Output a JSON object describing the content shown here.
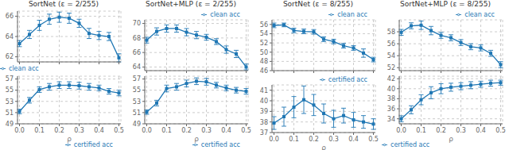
{
  "chart_data": [
    {
      "type": "line",
      "title": "SortNet (ε = 2/255)",
      "x": [
        0.0,
        0.05,
        0.1,
        0.15,
        0.2,
        0.25,
        0.3,
        0.35,
        0.4,
        0.45,
        0.5
      ],
      "xlim": [
        -0.01,
        0.51
      ],
      "xticks": [
        0,
        0.1,
        0.2,
        0.3,
        0.4,
        0.5
      ],
      "ylim": [
        61.5,
        66.5
      ],
      "yticks": [
        62,
        64,
        66
      ],
      "grid": true,
      "legend": "lower left",
      "tick_labels": "y",
      "series": [
        {
          "name": "clean acc",
          "color": "#1f77b4",
          "marker": "square",
          "values": [
            63.3,
            64.2,
            65.1,
            65.7,
            65.9,
            65.8,
            65.3,
            64.3,
            64.1,
            64.0,
            61.9
          ],
          "error": [
            0.3,
            0.4,
            0.5,
            0.5,
            0.5,
            0.5,
            0.4,
            0.5,
            0.4,
            0.4,
            0.4
          ]
        }
      ]
    },
    {
      "type": "line",
      "title": "SortNet+MLP (ε = 2/255)",
      "x": [
        0.0,
        0.05,
        0.1,
        0.15,
        0.2,
        0.25,
        0.3,
        0.35,
        0.4,
        0.45,
        0.5
      ],
      "xlim": [
        -0.01,
        0.51
      ],
      "xticks": [
        0,
        0.1,
        0.2,
        0.3,
        0.4,
        0.5
      ],
      "ylim": [
        63.5,
        70.5
      ],
      "yticks": [
        64,
        66,
        68,
        70
      ],
      "grid": true,
      "legend": "upper right",
      "tick_labels": "y",
      "series": [
        {
          "name": "clean acc",
          "color": "#1f77b4",
          "marker": "square",
          "values": [
            67.7,
            68.9,
            69.3,
            69.3,
            68.8,
            68.4,
            68.1,
            67.5,
            66.4,
            65.8,
            64.0
          ],
          "error": [
            0.4,
            0.5,
            0.5,
            0.5,
            0.5,
            0.5,
            0.4,
            0.4,
            0.5,
            0.5,
            0.4
          ]
        }
      ]
    },
    {
      "type": "line",
      "title": "SortNet (ε = 8/255)",
      "x": [
        0.0,
        0.05,
        0.1,
        0.15,
        0.2,
        0.25,
        0.3,
        0.35,
        0.4,
        0.45,
        0.5
      ],
      "xlim": [
        -0.01,
        0.51
      ],
      "xticks": [
        0,
        0.1,
        0.2,
        0.3,
        0.4,
        0.5
      ],
      "ylim": [
        46,
        57.0
      ],
      "yticks": [
        46,
        48,
        50,
        52,
        54,
        56
      ],
      "grid": true,
      "legend": "upper right",
      "tick_labels": "y",
      "series": [
        {
          "name": "clean acc",
          "color": "#1f77b4",
          "marker": "square",
          "values": [
            55.8,
            55.9,
            54.7,
            54.5,
            54.4,
            52.8,
            52.3,
            51.4,
            50.9,
            49.8,
            48.4
          ],
          "error": [
            0.5,
            0.4,
            0.5,
            0.5,
            0.5,
            0.5,
            0.5,
            0.5,
            0.5,
            0.9,
            0.5
          ]
        }
      ]
    },
    {
      "type": "line",
      "title": "SortNet+MLP (ε = 8/255)",
      "x": [
        0.0,
        0.05,
        0.1,
        0.15,
        0.2,
        0.25,
        0.3,
        0.35,
        0.4,
        0.45,
        0.5
      ],
      "xlim": [
        -0.01,
        0.51
      ],
      "xticks": [
        0,
        0.1,
        0.2,
        0.3,
        0.4,
        0.5
      ],
      "ylim": [
        51.5,
        60.0
      ],
      "yticks": [
        52,
        54,
        56,
        58
      ],
      "grid": true,
      "legend": "upper right",
      "tick_labels": "y",
      "series": [
        {
          "name": "clean acc",
          "color": "#1f77b4",
          "marker": "square",
          "values": [
            57.9,
            59.0,
            59.1,
            58.2,
            57.4,
            57.0,
            56.2,
            55.5,
            55.3,
            54.4,
            52.5
          ],
          "error": [
            0.5,
            0.5,
            0.7,
            0.7,
            0.5,
            0.5,
            0.5,
            0.5,
            0.5,
            0.5,
            0.5
          ]
        }
      ]
    },
    {
      "type": "line",
      "xlabel": "ρ",
      "x": [
        0.0,
        0.05,
        0.1,
        0.15,
        0.2,
        0.25,
        0.3,
        0.35,
        0.4,
        0.45,
        0.5
      ],
      "xlim": [
        -0.01,
        0.51
      ],
      "xticks": [
        {
          "value": 0,
          "label": "0.0"
        },
        0.1,
        0.2,
        0.3,
        0.4,
        0.5
      ],
      "ylim": [
        49,
        57.5
      ],
      "yticks": [
        49,
        51,
        53,
        55,
        57
      ],
      "grid": true,
      "legend": "lower right",
      "series": [
        {
          "name": "certified acc",
          "color": "#1f77b4",
          "marker": "square",
          "values": [
            51.2,
            53.2,
            55.1,
            55.6,
            55.9,
            55.9,
            55.8,
            55.6,
            55.4,
            54.8,
            54.5
          ],
          "error": [
            0.4,
            0.5,
            0.5,
            0.6,
            0.6,
            0.6,
            0.6,
            0.6,
            0.5,
            0.5,
            0.5
          ]
        }
      ]
    },
    {
      "type": "line",
      "xlabel": "ρ",
      "x": [
        0.0,
        0.05,
        0.1,
        0.15,
        0.2,
        0.25,
        0.3,
        0.35,
        0.4,
        0.45,
        0.5
      ],
      "xlim": [
        -0.01,
        0.51
      ],
      "xticks": [
        {
          "value": 0,
          "label": "0.0"
        },
        0.1,
        0.2,
        0.3,
        0.4,
        0.5
      ],
      "ylim": [
        49,
        57.5
      ],
      "yticks": [
        49,
        51,
        53,
        55,
        57
      ],
      "grid": true,
      "legend": "lower right",
      "series": [
        {
          "name": "certified acc",
          "color": "#1f77b4",
          "marker": "square",
          "values": [
            51.1,
            52.7,
            55.3,
            55.6,
            56.2,
            56.6,
            56.5,
            55.9,
            55.4,
            55.0,
            54.8
          ],
          "error": [
            0.4,
            0.5,
            0.6,
            0.6,
            0.6,
            0.6,
            0.6,
            0.5,
            0.5,
            0.5,
            0.5
          ]
        }
      ]
    },
    {
      "type": "line",
      "xlabel": "ρ",
      "x": [
        0.0,
        0.05,
        0.1,
        0.15,
        0.2,
        0.25,
        0.3,
        0.35,
        0.4,
        0.45,
        0.5
      ],
      "xlim": [
        -0.01,
        0.51
      ],
      "xticks": [
        {
          "value": 0,
          "label": "0.0"
        },
        0.1,
        0.2,
        0.3,
        0.4,
        0.5
      ],
      "ylim": [
        37.0,
        41.5
      ],
      "yticks": [
        37,
        38,
        39,
        40,
        41
      ],
      "grid": true,
      "legend": "upper right",
      "series": [
        {
          "name": "certified acc",
          "color": "#1f77b4",
          "marker": "square",
          "values": [
            37.9,
            38.5,
            39.4,
            40.1,
            39.6,
            38.8,
            38.3,
            38.6,
            38.2,
            38.0,
            37.8
          ],
          "error": [
            0.6,
            0.9,
            1.0,
            1.3,
            1.0,
            0.9,
            0.8,
            0.7,
            0.7,
            0.6,
            0.5
          ]
        }
      ]
    },
    {
      "type": "line",
      "xlabel": "ρ",
      "x": [
        0.0,
        0.05,
        0.1,
        0.15,
        0.2,
        0.25,
        0.3,
        0.35,
        0.4,
        0.45,
        0.5
      ],
      "xlim": [
        -0.01,
        0.51
      ],
      "xticks": [
        {
          "value": 0,
          "label": "0.0"
        },
        0.1,
        0.2,
        0.3,
        0.4,
        0.5
      ],
      "ylim": [
        33.0,
        42.5
      ],
      "yticks": [
        34,
        36,
        38,
        40,
        42
      ],
      "grid": true,
      "legend": "lower left",
      "series": [
        {
          "name": "certified acc",
          "color": "#1f77b4",
          "marker": "square",
          "values": [
            34.0,
            35.8,
            37.8,
            39.2,
            40.0,
            40.3,
            40.5,
            40.7,
            40.9,
            41.1,
            41.2
          ],
          "error": [
            0.6,
            0.8,
            1.0,
            1.2,
            1.0,
            0.8,
            0.7,
            0.7,
            0.6,
            0.6,
            0.5
          ]
        }
      ]
    }
  ]
}
